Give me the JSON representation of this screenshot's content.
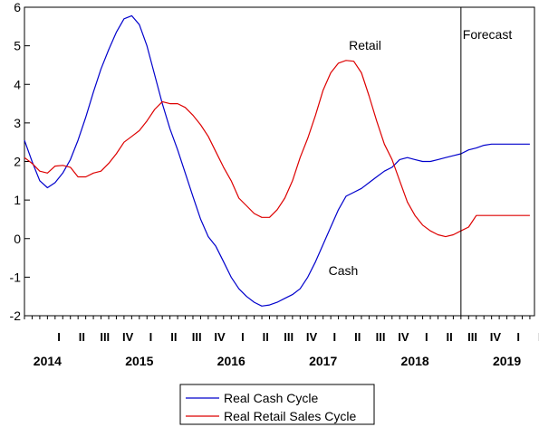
{
  "chart_data": {
    "type": "line",
    "title": "",
    "xlabel": "",
    "ylabel": "",
    "x": [
      2013.75,
      2013.833,
      2013.917,
      2014.0,
      2014.083,
      2014.167,
      2014.25,
      2014.333,
      2014.417,
      2014.5,
      2014.583,
      2014.667,
      2014.75,
      2014.833,
      2014.917,
      2015.0,
      2015.083,
      2015.167,
      2015.25,
      2015.333,
      2015.417,
      2015.5,
      2015.583,
      2015.667,
      2015.75,
      2015.833,
      2015.917,
      2016.0,
      2016.083,
      2016.167,
      2016.25,
      2016.333,
      2016.417,
      2016.5,
      2016.583,
      2016.667,
      2016.75,
      2016.833,
      2016.917,
      2017.0,
      2017.083,
      2017.167,
      2017.25,
      2017.333,
      2017.417,
      2017.5,
      2017.583,
      2017.667,
      2017.75,
      2017.833,
      2017.917,
      2018.0,
      2018.083,
      2018.167,
      2018.25,
      2018.333,
      2018.417,
      2018.5,
      2018.583,
      2018.667,
      2018.75,
      2018.833,
      2018.917,
      2019.0,
      2019.083,
      2019.167,
      2019.25
    ],
    "series": [
      {
        "name": "Real Cash Cycle",
        "color": "#0000cc",
        "values": [
          2.55,
          2.0,
          1.5,
          1.32,
          1.45,
          1.7,
          2.05,
          2.55,
          3.15,
          3.8,
          4.4,
          4.9,
          5.35,
          5.7,
          5.78,
          5.55,
          5.0,
          4.25,
          3.5,
          2.85,
          2.3,
          1.7,
          1.1,
          0.5,
          0.05,
          -0.2,
          -0.6,
          -1.0,
          -1.3,
          -1.5,
          -1.65,
          -1.75,
          -1.72,
          -1.65,
          -1.55,
          -1.45,
          -1.3,
          -1.0,
          -0.6,
          -0.15,
          0.3,
          0.75,
          1.1,
          1.2,
          1.3,
          1.45,
          1.6,
          1.75,
          1.85,
          2.05,
          2.1,
          2.05,
          2.0,
          2.0,
          2.05,
          2.1,
          2.15,
          2.2,
          2.3,
          2.35,
          2.42,
          2.45,
          2.45,
          2.45,
          2.45,
          2.45,
          2.45
        ]
      },
      {
        "name": "Real Retail Sales Cycle",
        "color": "#dd0000",
        "values": [
          2.1,
          1.95,
          1.75,
          1.7,
          1.88,
          1.9,
          1.85,
          1.6,
          1.6,
          1.7,
          1.75,
          1.95,
          2.2,
          2.5,
          2.65,
          2.8,
          3.05,
          3.35,
          3.55,
          3.5,
          3.5,
          3.4,
          3.2,
          2.95,
          2.65,
          2.25,
          1.85,
          1.5,
          1.05,
          0.85,
          0.65,
          0.55,
          0.55,
          0.75,
          1.05,
          1.5,
          2.1,
          2.6,
          3.2,
          3.85,
          4.3,
          4.55,
          4.62,
          4.6,
          4.3,
          3.7,
          3.05,
          2.45,
          2.05,
          1.5,
          0.95,
          0.6,
          0.35,
          0.2,
          0.1,
          0.05,
          0.1,
          0.2,
          0.3,
          0.6,
          0.6,
          0.6,
          0.6,
          0.6,
          0.6,
          0.6,
          0.6
        ]
      }
    ],
    "ylim": [
      -2,
      6
    ],
    "yticks": [
      "6",
      "5",
      "4",
      "3",
      "2",
      "1",
      "0",
      "-1",
      "-2"
    ],
    "quarter_ticks": [
      "I",
      "II",
      "III",
      "IV",
      "I",
      "II",
      "III",
      "IV",
      "I",
      "II",
      "III",
      "IV",
      "I",
      "II",
      "III",
      "IV",
      "I",
      "II",
      "III",
      "IV",
      "I",
      "II",
      "III",
      "IV"
    ],
    "years": [
      "2014",
      "2015",
      "2016",
      "2017",
      "2018",
      "2019"
    ],
    "forecast_start": 2018.5,
    "annotations": {
      "retail": "Retail",
      "cash": "Cash",
      "forecast": "Forecast"
    },
    "legend": {
      "position": "bottom"
    },
    "grid": false
  }
}
